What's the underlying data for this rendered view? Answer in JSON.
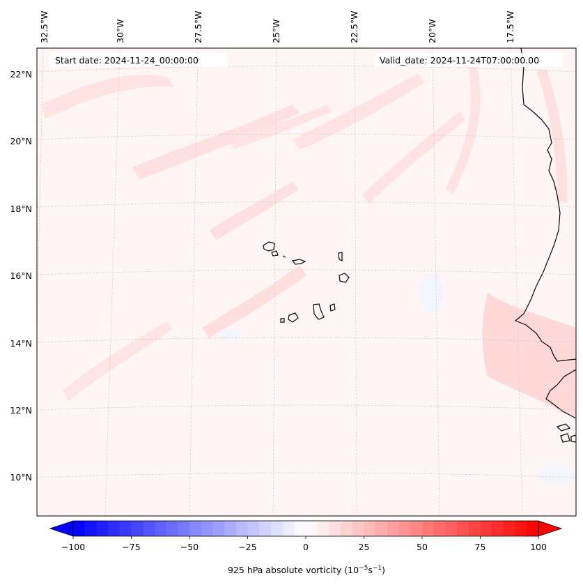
{
  "map": {
    "start_date": "Start date: 2024-11-24_00:00:00",
    "valid_date": "Valid_date: 2024-11-24T07:00:00.00",
    "lon_labels": [
      "32.5°W",
      "30°W",
      "27.5°W",
      "25°W",
      "22.5°W",
      "20°W",
      "17.5°W"
    ],
    "lat_labels": [
      "22°N",
      "20°N",
      "18°N",
      "16°N",
      "14°N",
      "12°N",
      "10°N"
    ]
  },
  "colorbar": {
    "ticks": [
      "−100",
      "−75",
      "−50",
      "−25",
      "0",
      "25",
      "50",
      "75",
      "100"
    ],
    "label": "925 hPa absolute vorticity (10",
    "label_exp1": "−5",
    "label_mid": "s",
    "label_exp2": "−1",
    "label_end": ")",
    "min": -100,
    "max": 100,
    "colors": {
      "low": "#0000ff",
      "mid": "#ffffff",
      "high": "#ff0000"
    }
  },
  "colors": {
    "background_field": "#fff5f5",
    "positive_shade": "#ffdede",
    "negative_shade": "#f3f6ff",
    "coastline": "#000000",
    "gridline": "#c8c8c8"
  }
}
